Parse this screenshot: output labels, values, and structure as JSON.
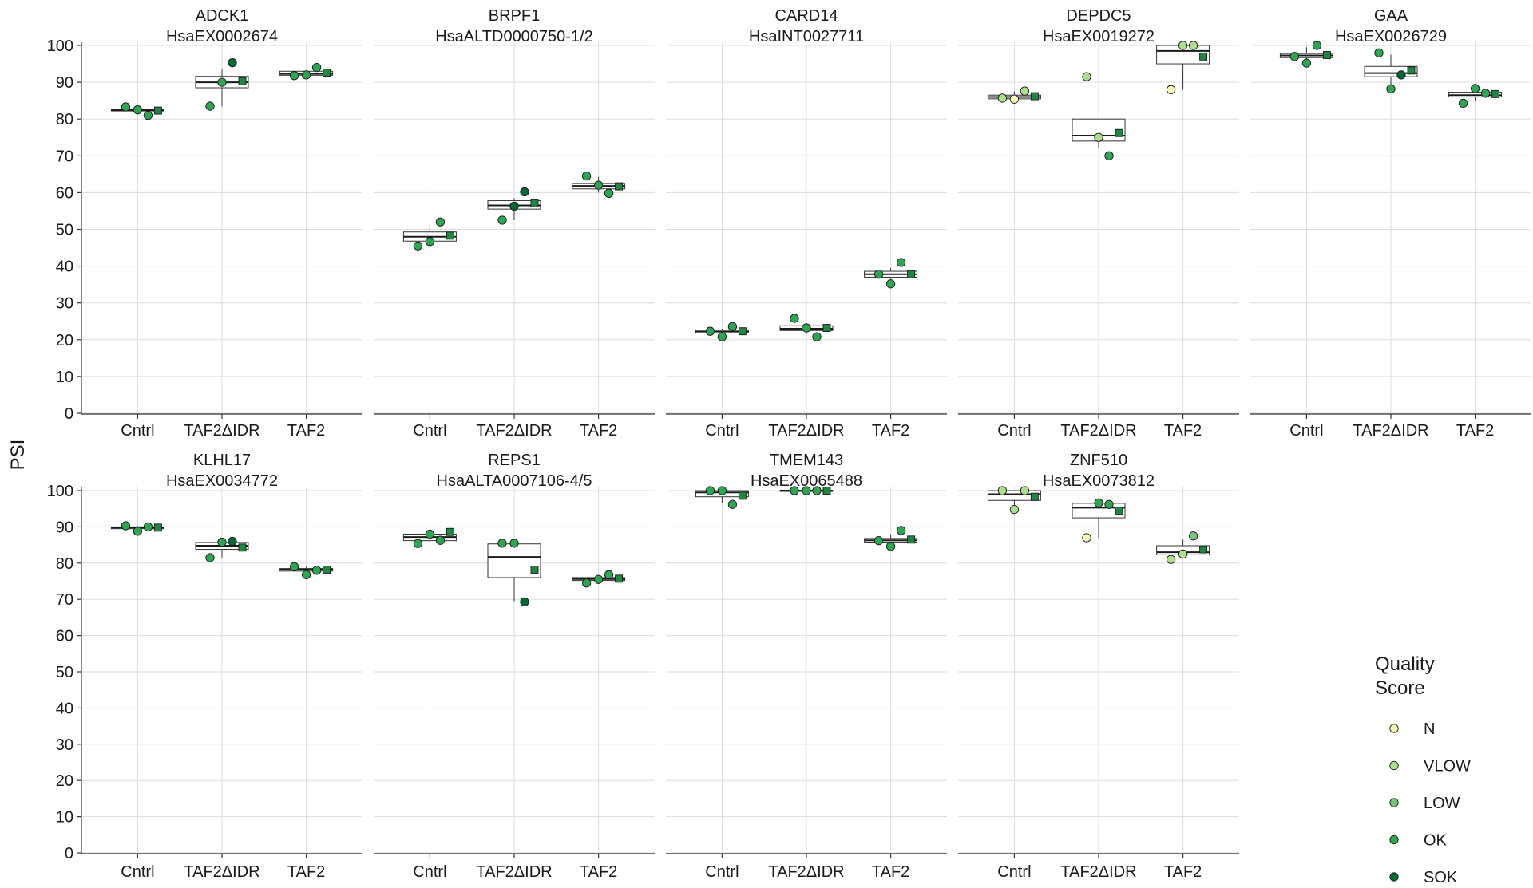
{
  "chart_data": {
    "type": "box",
    "ylabel": "PSI",
    "ylim": [
      0,
      100
    ],
    "yticks": [
      0,
      10,
      20,
      30,
      40,
      50,
      60,
      70,
      80,
      90,
      100
    ],
    "categories": [
      "Cntrl",
      "TAF2ΔIDR",
      "TAF2"
    ],
    "grid": true,
    "legend": {
      "title_lines": [
        "Quality",
        "Score"
      ],
      "placement": "bottom-right",
      "entries": [
        {
          "label": "N",
          "color": "#f7fcb9"
        },
        {
          "label": "VLOW",
          "color": "#addd8e"
        },
        {
          "label": "LOW",
          "color": "#78c679"
        },
        {
          "label": "OK",
          "color": "#31a354"
        },
        {
          "label": "SOK",
          "color": "#006837"
        }
      ]
    },
    "colors": {
      "N": "#f7fcb9",
      "VLOW": "#addd8e",
      "LOW": "#78c679",
      "OK": "#31a354",
      "SOK": "#006837"
    },
    "panels": [
      {
        "gene": "ADCK1",
        "event": "HsaEX0002674",
        "groups": [
          {
            "category": "Cntrl",
            "box": [
              82,
              82.2,
              82.4,
              82.6,
              83
            ],
            "mean": 82.3,
            "points": [
              {
                "y": 83.3,
                "q": "OK"
              },
              {
                "y": 82.5,
                "q": "OK"
              },
              {
                "y": 81.0,
                "q": "OK"
              }
            ]
          },
          {
            "category": "TAF2ΔIDR",
            "box": [
              83.5,
              88.5,
              90,
              91.6,
              93.5
            ],
            "mean": 90.3,
            "points": [
              {
                "y": 83.5,
                "q": "OK"
              },
              {
                "y": 90.0,
                "q": "OK"
              },
              {
                "y": 95.3,
                "q": "SOK"
              }
            ]
          },
          {
            "category": "TAF2",
            "box": [
              91.8,
              91.9,
              92.3,
              93.0,
              93.2
            ],
            "mean": 92.6,
            "points": [
              {
                "y": 91.8,
                "q": "OK"
              },
              {
                "y": 92.0,
                "q": "OK"
              },
              {
                "y": 94.0,
                "q": "OK"
              }
            ]
          }
        ]
      },
      {
        "gene": "BRPF1",
        "event": "HsaALTD0000750-1/2",
        "groups": [
          {
            "category": "Cntrl",
            "box": [
              46.5,
              46.8,
              48.0,
              49.3,
              51.5
            ],
            "mean": 48.3,
            "points": [
              {
                "y": 45.5,
                "q": "OK"
              },
              {
                "y": 46.7,
                "q": "OK"
              },
              {
                "y": 52.0,
                "q": "OK"
              }
            ]
          },
          {
            "category": "TAF2ΔIDR",
            "box": [
              52.5,
              55.5,
              56.5,
              57.8,
              58.5
            ],
            "mean": 57.1,
            "points": [
              {
                "y": 52.5,
                "q": "OK"
              },
              {
                "y": 56.3,
                "q": "SOK"
              },
              {
                "y": 60.2,
                "q": "SOK"
              }
            ]
          },
          {
            "category": "TAF2",
            "box": [
              60.0,
              61.0,
              61.8,
              62.5,
              64.3
            ],
            "mean": 61.7,
            "points": [
              {
                "y": 64.5,
                "q": "OK"
              },
              {
                "y": 62.0,
                "q": "OK"
              },
              {
                "y": 59.8,
                "q": "OK"
              }
            ]
          }
        ]
      },
      {
        "gene": "CARD14",
        "event": "HsaINT0027711",
        "groups": [
          {
            "category": "Cntrl",
            "box": [
              21.0,
              21.8,
              22.2,
              22.6,
              23.0
            ],
            "mean": 22.3,
            "points": [
              {
                "y": 22.3,
                "q": "OK"
              },
              {
                "y": 20.8,
                "q": "OK"
              },
              {
                "y": 23.6,
                "q": "OK"
              }
            ]
          },
          {
            "category": "TAF2ΔIDR",
            "box": [
              21.5,
              22.5,
              23.0,
              23.8,
              24.5
            ],
            "mean": 23.2,
            "points": [
              {
                "y": 25.8,
                "q": "OK"
              },
              {
                "y": 23.2,
                "q": "OK"
              },
              {
                "y": 20.8,
                "q": "OK"
              }
            ]
          },
          {
            "category": "TAF2",
            "box": [
              36.5,
              37.0,
              37.8,
              38.6,
              39.5
            ],
            "mean": 37.8,
            "points": [
              {
                "y": 37.8,
                "q": "OK"
              },
              {
                "y": 35.2,
                "q": "OK"
              },
              {
                "y": 41.0,
                "q": "OK"
              }
            ]
          }
        ]
      },
      {
        "gene": "DEPDC5",
        "event": "HsaEX0019272",
        "groups": [
          {
            "category": "Cntrl",
            "box": [
              85.5,
              85.5,
              86.0,
              86.5,
              87.5
            ],
            "mean": 86.2,
            "points": [
              {
                "y": 85.7,
                "q": "VLOW"
              },
              {
                "y": 85.4,
                "q": "N"
              },
              {
                "y": 87.6,
                "q": "VLOW"
              }
            ]
          },
          {
            "category": "TAF2ΔIDR",
            "box": [
              72.0,
              74.0,
              75.5,
              80.0,
              80.0
            ],
            "mean": 76.2,
            "points": [
              {
                "y": 91.5,
                "q": "VLOW"
              },
              {
                "y": 75.0,
                "q": "VLOW"
              },
              {
                "y": 70.0,
                "q": "OK"
              }
            ]
          },
          {
            "category": "TAF2",
            "box": [
              88.0,
              95.0,
              98.5,
              100.0,
              100.0
            ],
            "mean": 97.0,
            "points": [
              {
                "y": 88.0,
                "q": "N"
              },
              {
                "y": 100.0,
                "q": "VLOW"
              },
              {
                "y": 100.0,
                "q": "VLOW"
              }
            ]
          }
        ]
      },
      {
        "gene": "GAA",
        "event": "HsaEX0026729",
        "groups": [
          {
            "category": "Cntrl",
            "box": [
              96.0,
              96.7,
              97.3,
              97.8,
              99.5
            ],
            "mean": 97.4,
            "points": [
              {
                "y": 97.0,
                "q": "OK"
              },
              {
                "y": 95.2,
                "q": "OK"
              },
              {
                "y": 100.0,
                "q": "OK"
              }
            ]
          },
          {
            "category": "TAF2ΔIDR",
            "box": [
              88.5,
              91.5,
              92.5,
              94.3,
              97.5
            ],
            "mean": 93.2,
            "points": [
              {
                "y": 98.0,
                "q": "OK"
              },
              {
                "y": 88.2,
                "q": "OK"
              },
              {
                "y": 92.0,
                "q": "SOK"
              }
            ]
          },
          {
            "category": "TAF2",
            "box": [
              85.0,
              86.0,
              86.5,
              87.3,
              88.0
            ],
            "mean": 86.8,
            "points": [
              {
                "y": 84.3,
                "q": "OK"
              },
              {
                "y": 88.3,
                "q": "OK"
              },
              {
                "y": 87.0,
                "q": "OK"
              }
            ]
          }
        ]
      },
      {
        "gene": "KLHL17",
        "event": "HsaEX0034772",
        "groups": [
          {
            "category": "Cntrl",
            "box": [
              89.0,
              89.5,
              89.8,
              90.0,
              90.3
            ],
            "mean": 89.8,
            "points": [
              {
                "y": 90.3,
                "q": "OK"
              },
              {
                "y": 88.8,
                "q": "OK"
              },
              {
                "y": 90.0,
                "q": "OK"
              }
            ]
          },
          {
            "category": "TAF2ΔIDR",
            "box": [
              81.5,
              83.8,
              84.8,
              85.7,
              86.2
            ],
            "mean": 84.3,
            "points": [
              {
                "y": 81.5,
                "q": "OK"
              },
              {
                "y": 85.8,
                "q": "OK"
              },
              {
                "y": 86.0,
                "q": "SOK"
              }
            ]
          },
          {
            "category": "TAF2",
            "box": [
              77.0,
              77.8,
              78.2,
              78.5,
              79.0
            ],
            "mean": 78.2,
            "points": [
              {
                "y": 79.0,
                "q": "OK"
              },
              {
                "y": 76.8,
                "q": "OK"
              },
              {
                "y": 78.0,
                "q": "OK"
              }
            ]
          }
        ]
      },
      {
        "gene": "REPS1",
        "event": "HsaALTA0007106-4/5",
        "groups": [
          {
            "category": "Cntrl",
            "box": [
              85.5,
              86.2,
              87.2,
              88.0,
              88.5
            ],
            "mean": 88.6,
            "points": [
              {
                "y": 85.4,
                "q": "OK"
              },
              {
                "y": 88.0,
                "q": "OK"
              },
              {
                "y": 86.3,
                "q": "OK"
              }
            ]
          },
          {
            "category": "TAF2ΔIDR",
            "box": [
              69.5,
              76.0,
              81.7,
              85.3,
              85.5
            ],
            "mean": 78.2,
            "points": [
              {
                "y": 85.5,
                "q": "OK"
              },
              {
                "y": 85.5,
                "q": "OK"
              },
              {
                "y": 69.3,
                "q": "SOK"
              }
            ]
          },
          {
            "category": "TAF2",
            "box": [
              74.5,
              75.2,
              75.6,
              76.0,
              76.5
            ],
            "mean": 75.7,
            "points": [
              {
                "y": 74.5,
                "q": "OK"
              },
              {
                "y": 75.5,
                "q": "OK"
              },
              {
                "y": 76.8,
                "q": "OK"
              }
            ]
          }
        ]
      },
      {
        "gene": "TMEM143",
        "event": "HsaEX0065488",
        "groups": [
          {
            "category": "Cntrl",
            "box": [
              96.5,
              98.3,
              99.5,
              100.0,
              100.0
            ],
            "mean": 98.6,
            "points": [
              {
                "y": 100.0,
                "q": "OK"
              },
              {
                "y": 100.0,
                "q": "OK"
              },
              {
                "y": 96.2,
                "q": "OK"
              }
            ]
          },
          {
            "category": "TAF2ΔIDR",
            "box": [
              100.0,
              100.0,
              100.0,
              100.0,
              100.0
            ],
            "mean": 100.0,
            "points": [
              {
                "y": 100.0,
                "q": "OK"
              },
              {
                "y": 100.0,
                "q": "OK"
              },
              {
                "y": 100.0,
                "q": "OK"
              }
            ]
          },
          {
            "category": "TAF2",
            "box": [
              85.0,
              85.8,
              86.3,
              86.8,
              88.0
            ],
            "mean": 86.5,
            "points": [
              {
                "y": 86.2,
                "q": "OK"
              },
              {
                "y": 84.6,
                "q": "OK"
              },
              {
                "y": 89.0,
                "q": "OK"
              }
            ]
          }
        ]
      },
      {
        "gene": "ZNF510",
        "event": "HsaEX0073812",
        "groups": [
          {
            "category": "Cntrl",
            "box": [
              95.0,
              97.3,
              99.0,
              100.0,
              100.0
            ],
            "mean": 98.3,
            "points": [
              {
                "y": 100.0,
                "q": "VLOW"
              },
              {
                "y": 94.8,
                "q": "VLOW"
              },
              {
                "y": 100.0,
                "q": "VLOW"
              }
            ]
          },
          {
            "category": "TAF2ΔIDR",
            "box": [
              87.0,
              92.5,
              95.3,
              96.5,
              96.8
            ],
            "mean": 94.5,
            "points": [
              {
                "y": 87.0,
                "q": "N"
              },
              {
                "y": 96.6,
                "q": "OK"
              },
              {
                "y": 96.2,
                "q": "OK"
              }
            ]
          },
          {
            "category": "TAF2",
            "box": [
              82.0,
              82.3,
              83.0,
              84.8,
              86.5
            ],
            "mean": 83.8,
            "points": [
              {
                "y": 81.0,
                "q": "VLOW"
              },
              {
                "y": 82.5,
                "q": "VLOW"
              },
              {
                "y": 87.5,
                "q": "LOW"
              }
            ]
          }
        ]
      }
    ]
  }
}
